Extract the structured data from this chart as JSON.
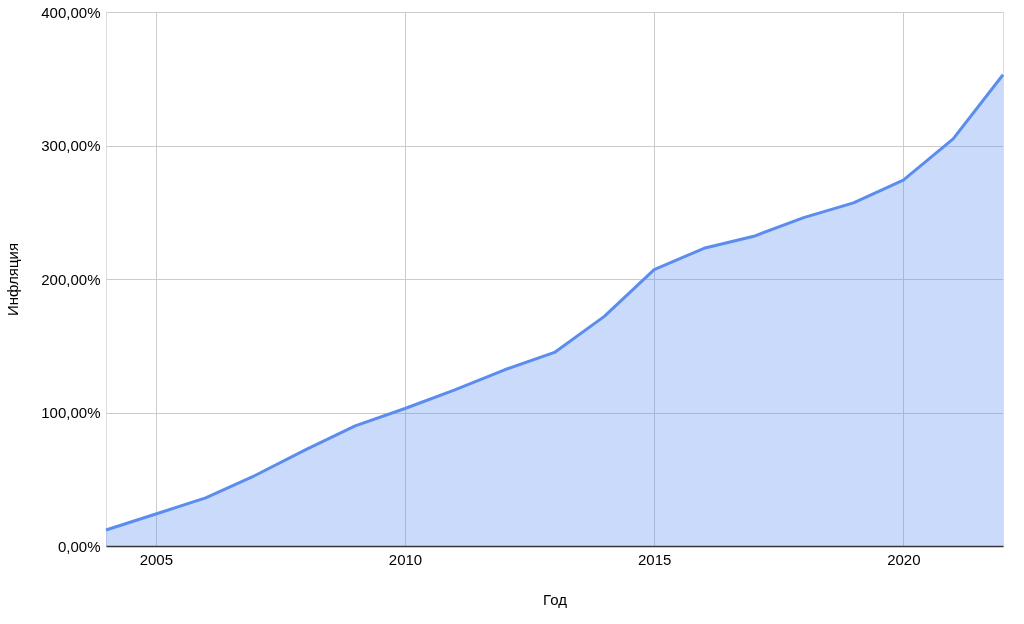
{
  "chart_data": {
    "type": "area",
    "xlabel": "Год",
    "ylabel": "Инфляция",
    "x": [
      2004,
      2005,
      2006,
      2007,
      2008,
      2009,
      2010,
      2011,
      2012,
      2013,
      2014,
      2015,
      2016,
      2017,
      2018,
      2019,
      2020,
      2021,
      2022
    ],
    "series": [
      {
        "color": "#5b8def",
        "values": [
          12,
          24,
          36,
          53,
          72,
          90,
          103,
          117,
          132,
          145,
          172,
          207,
          223,
          232,
          246,
          257,
          274,
          305,
          353
        ]
      }
    ],
    "xlim": [
      2004,
      2022
    ],
    "xticks": [
      2005,
      2010,
      2015,
      2020
    ],
    "ylim": [
      0,
      400
    ],
    "yticks": [
      {
        "value": 0,
        "label": "0,00%"
      },
      {
        "value": 100,
        "label": "100,00%"
      },
      {
        "value": 200,
        "label": "200,00%"
      },
      {
        "value": 300,
        "label": "300,00%"
      },
      {
        "value": 400,
        "label": "400,00%"
      }
    ],
    "grid": true
  }
}
